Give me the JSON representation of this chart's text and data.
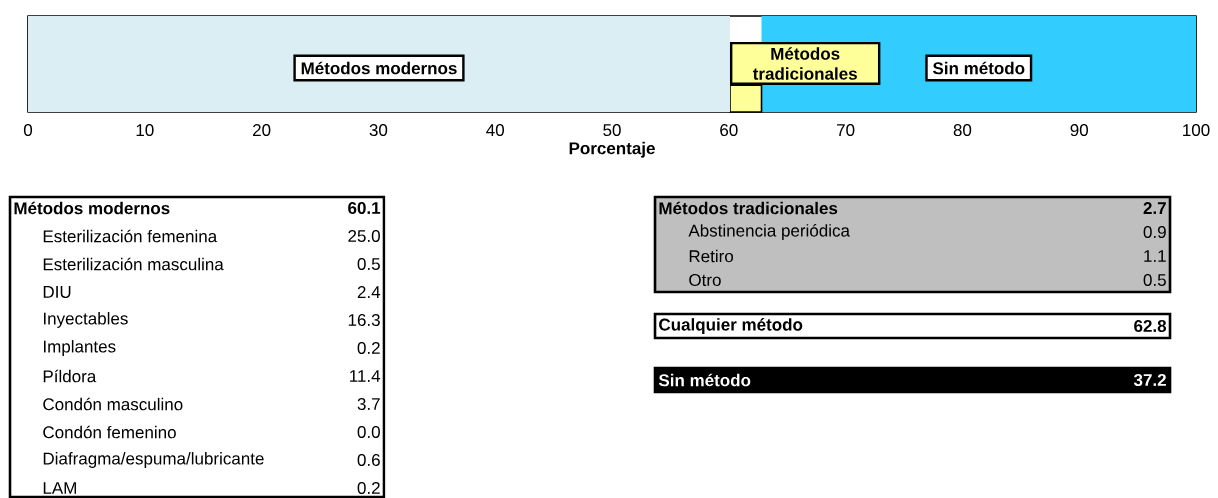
{
  "chart_data": [
    {
      "type": "bar",
      "orientation": "horizontal",
      "stacked": true,
      "categories": [
        null
      ],
      "xlabel": "Porcentaje",
      "xlim": [
        0,
        100
      ],
      "xticks": [
        0,
        10,
        20,
        30,
        40,
        50,
        60,
        70,
        80,
        90,
        100
      ],
      "series": [
        {
          "name": "Métodos modernos",
          "color": "#daeef3",
          "values": [
            60.1
          ]
        },
        {
          "name": "Métodos tradicionales",
          "color": "#ffff99",
          "values": [
            2.7
          ]
        },
        {
          "name": "Sin método",
          "color": "#33ccff",
          "values": [
            37.2
          ]
        }
      ]
    },
    {
      "type": "other",
      "categories": [
        "Métodos modernos",
        "Esterilización femenina",
        "Esterilización masculina",
        "DIU",
        "Inyectables",
        "Implantes",
        "Píldora",
        "Condón masculino",
        "Condón femenino",
        "Diafragma/espuma/lubricante",
        "LAM"
      ],
      "value_labels": [
        "60.1",
        "25.0",
        "0.5",
        "2.4",
        "16.3",
        "0.2",
        "11.4",
        "3.7",
        "0.0",
        "0.6",
        "0.2"
      ]
    },
    {
      "type": "other",
      "categories": [
        "Métodos tradicionales",
        "Abstinencia periódica",
        "Retiro",
        "Otro"
      ],
      "value_labels": [
        "2.7",
        "0.9",
        "1.1",
        "0.5"
      ]
    },
    {
      "type": "other",
      "categories": [
        "Cualquier método"
      ],
      "value_labels": [
        "62.8"
      ]
    },
    {
      "type": "other",
      "categories": [
        "Sin método"
      ],
      "value_labels": [
        "37.2"
      ]
    }
  ]
}
